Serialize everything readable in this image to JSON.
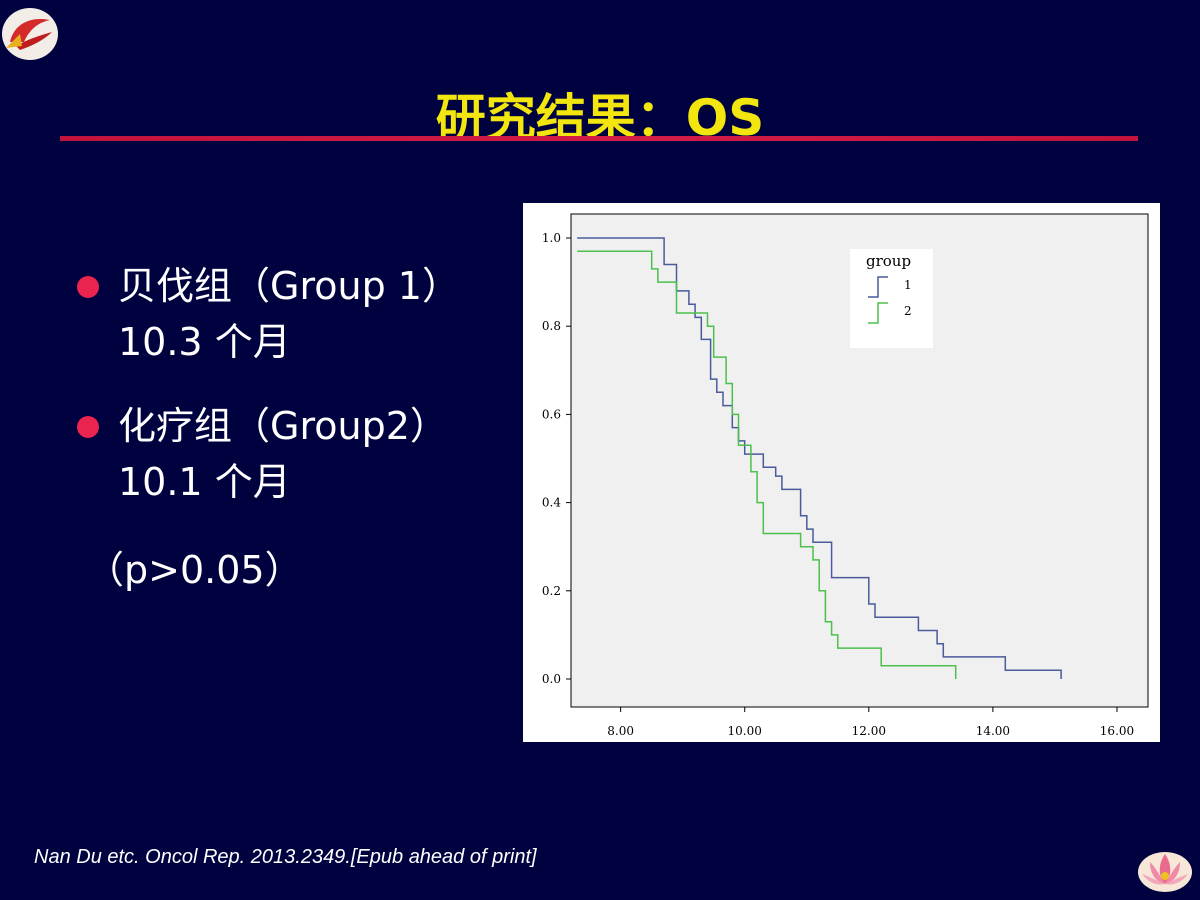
{
  "title": "研究结果：OS",
  "bullets": [
    {
      "line1": "贝伐组（Group 1）",
      "line2": "10.3 个月"
    },
    {
      "line1": "化疗组（Group2）",
      "line2": "10.1 个月"
    }
  ],
  "p_value": "（p>0.05）",
  "citation": "Nan Du etc. Oncol Rep. 2013.2349.[Epub ahead of print]",
  "colors": {
    "background": "#000240",
    "title": "#f2e60e",
    "rule": "#d41c48",
    "bullet": "#e8244f"
  },
  "chart_data": {
    "type": "line",
    "step": true,
    "grid": false,
    "xlim": [
      7.2,
      16.5
    ],
    "ylim": [
      0.0,
      1.0
    ],
    "xticks": [
      "8.00",
      "10.00",
      "12.00",
      "14.00",
      "16.00"
    ],
    "yticks": [
      "0.0",
      "0.2",
      "0.4",
      "0.6",
      "0.8",
      "1.0"
    ],
    "legend": {
      "title": "group",
      "placement": "top-right"
    },
    "series": [
      {
        "name": "1",
        "color": "#4a5a9c",
        "points": [
          [
            7.3,
            1.0
          ],
          [
            8.7,
            1.0
          ],
          [
            8.7,
            0.94
          ],
          [
            8.9,
            0.94
          ],
          [
            8.9,
            0.88
          ],
          [
            9.1,
            0.88
          ],
          [
            9.1,
            0.85
          ],
          [
            9.2,
            0.85
          ],
          [
            9.2,
            0.82
          ],
          [
            9.3,
            0.82
          ],
          [
            9.3,
            0.77
          ],
          [
            9.45,
            0.77
          ],
          [
            9.45,
            0.68
          ],
          [
            9.55,
            0.68
          ],
          [
            9.55,
            0.65
          ],
          [
            9.65,
            0.65
          ],
          [
            9.65,
            0.62
          ],
          [
            9.8,
            0.62
          ],
          [
            9.8,
            0.57
          ],
          [
            9.9,
            0.57
          ],
          [
            9.9,
            0.54
          ],
          [
            10.0,
            0.54
          ],
          [
            10.0,
            0.51
          ],
          [
            10.3,
            0.51
          ],
          [
            10.3,
            0.48
          ],
          [
            10.5,
            0.48
          ],
          [
            10.5,
            0.46
          ],
          [
            10.6,
            0.46
          ],
          [
            10.6,
            0.43
          ],
          [
            10.9,
            0.43
          ],
          [
            10.9,
            0.37
          ],
          [
            11.0,
            0.37
          ],
          [
            11.0,
            0.34
          ],
          [
            11.1,
            0.34
          ],
          [
            11.1,
            0.31
          ],
          [
            11.4,
            0.31
          ],
          [
            11.4,
            0.23
          ],
          [
            12.0,
            0.23
          ],
          [
            12.0,
            0.17
          ],
          [
            12.1,
            0.17
          ],
          [
            12.1,
            0.14
          ],
          [
            12.8,
            0.14
          ],
          [
            12.8,
            0.11
          ],
          [
            13.1,
            0.11
          ],
          [
            13.1,
            0.08
          ],
          [
            13.2,
            0.08
          ],
          [
            13.2,
            0.05
          ],
          [
            14.2,
            0.05
          ],
          [
            14.2,
            0.02
          ],
          [
            15.1,
            0.02
          ],
          [
            15.1,
            0.0
          ]
        ]
      },
      {
        "name": "2",
        "color": "#4cc04c",
        "points": [
          [
            7.3,
            0.97
          ],
          [
            8.5,
            0.97
          ],
          [
            8.5,
            0.93
          ],
          [
            8.6,
            0.93
          ],
          [
            8.6,
            0.9
          ],
          [
            8.9,
            0.9
          ],
          [
            8.9,
            0.83
          ],
          [
            9.4,
            0.83
          ],
          [
            9.4,
            0.8
          ],
          [
            9.5,
            0.8
          ],
          [
            9.5,
            0.73
          ],
          [
            9.7,
            0.73
          ],
          [
            9.7,
            0.67
          ],
          [
            9.8,
            0.67
          ],
          [
            9.8,
            0.6
          ],
          [
            9.9,
            0.6
          ],
          [
            9.9,
            0.53
          ],
          [
            10.1,
            0.53
          ],
          [
            10.1,
            0.47
          ],
          [
            10.2,
            0.47
          ],
          [
            10.2,
            0.4
          ],
          [
            10.3,
            0.4
          ],
          [
            10.3,
            0.33
          ],
          [
            10.9,
            0.33
          ],
          [
            10.9,
            0.3
          ],
          [
            11.1,
            0.3
          ],
          [
            11.1,
            0.27
          ],
          [
            11.2,
            0.27
          ],
          [
            11.2,
            0.2
          ],
          [
            11.3,
            0.2
          ],
          [
            11.3,
            0.13
          ],
          [
            11.4,
            0.13
          ],
          [
            11.4,
            0.1
          ],
          [
            11.5,
            0.1
          ],
          [
            11.5,
            0.07
          ],
          [
            12.2,
            0.07
          ],
          [
            12.2,
            0.03
          ],
          [
            13.4,
            0.03
          ],
          [
            13.4,
            0.0
          ]
        ]
      }
    ]
  }
}
